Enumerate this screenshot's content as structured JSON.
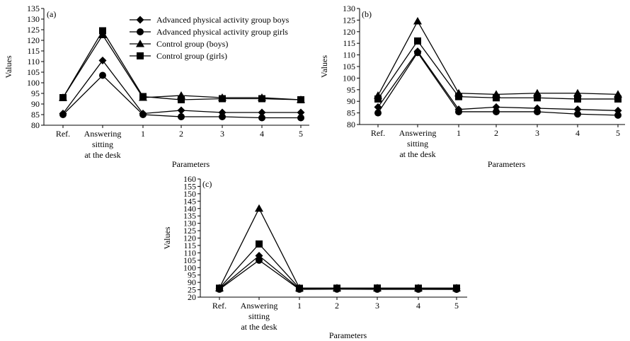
{
  "figure": {
    "legend_labels": [
      "Advanced physical activity group boys",
      "Advanced physical activity group girls",
      "Control group (boys)",
      "Control group (girls)"
    ]
  },
  "chart_data": [
    {
      "type": "line",
      "panel": "(a)",
      "xlabel": "Parameters",
      "ylabel": "Values",
      "categories": [
        "Ref.",
        "Answering sitting at the desk",
        "1",
        "2",
        "3",
        "4",
        "5"
      ],
      "ylim": [
        80,
        135
      ],
      "yticks": [
        80,
        85,
        90,
        95,
        100,
        105,
        110,
        115,
        120,
        125,
        130,
        135
      ],
      "grid": false,
      "legend_position": "top-center",
      "series": [
        {
          "name": "Advanced physical activity group boys",
          "marker": "diamond",
          "values": [
            85.5,
            110.5,
            85.5,
            87,
            86,
            86,
            86
          ]
        },
        {
          "name": "Advanced physical activity group girls",
          "marker": "circle",
          "values": [
            85,
            103.5,
            85,
            84,
            84,
            83.5,
            83.5
          ]
        },
        {
          "name": "Control group (boys)",
          "marker": "triangle",
          "values": [
            93,
            122.5,
            93,
            94,
            93,
            93,
            92
          ]
        },
        {
          "name": "Control group (girls)",
          "marker": "square",
          "values": [
            93,
            124.5,
            93.5,
            92,
            92.5,
            92.5,
            92
          ]
        }
      ]
    },
    {
      "type": "line",
      "panel": "(b)",
      "xlabel": "Parameters",
      "ylabel": "Values",
      "categories": [
        "Ref.",
        "Answering sitting at the desk",
        "1",
        "2",
        "3",
        "4",
        "5"
      ],
      "ylim": [
        80,
        130
      ],
      "yticks": [
        80,
        85,
        90,
        95,
        100,
        105,
        110,
        115,
        120,
        125,
        130
      ],
      "grid": false,
      "series": [
        {
          "name": "Advanced physical activity group boys",
          "marker": "diamond",
          "values": [
            87.5,
            111.5,
            86.5,
            87.5,
            87,
            86.5,
            86
          ]
        },
        {
          "name": "Advanced physical activity group girls",
          "marker": "circle",
          "values": [
            85,
            111,
            85.5,
            85.5,
            85.5,
            84.5,
            84
          ]
        },
        {
          "name": "Control group (boys)",
          "marker": "triangle",
          "values": [
            92.5,
            124.5,
            93.5,
            93,
            93.5,
            93.5,
            93
          ]
        },
        {
          "name": "Control group (girls)",
          "marker": "square",
          "values": [
            91,
            116,
            92,
            91.5,
            91.5,
            91,
            91
          ]
        }
      ]
    },
    {
      "type": "line",
      "panel": "(c)",
      "xlabel": "Parameters",
      "ylabel": "Values",
      "categories": [
        "Ref.",
        "Answering sitting at the desk",
        "1",
        "2",
        "3",
        "4",
        "5"
      ],
      "ylim": [
        20,
        160
      ],
      "yticks": [
        20,
        25,
        90,
        95,
        100,
        105,
        110,
        115,
        120,
        125,
        130,
        135,
        140,
        145,
        150,
        155,
        160
      ],
      "grid": false,
      "series": [
        {
          "name": "Advanced physical activity group boys",
          "marker": "diamond",
          "values": [
            35,
            108,
            34,
            35,
            35,
            35,
            35
          ]
        },
        {
          "name": "Advanced physical activity group girls",
          "marker": "circle",
          "values": [
            29,
            105,
            29,
            30,
            29,
            29,
            28
          ]
        },
        {
          "name": "Control group (boys)",
          "marker": "triangle",
          "values": [
            40,
            140,
            40,
            40,
            40,
            40,
            40
          ]
        },
        {
          "name": "Control group (girls)",
          "marker": "square",
          "values": [
            39,
            116,
            38,
            39,
            40,
            39,
            40
          ]
        }
      ]
    }
  ]
}
